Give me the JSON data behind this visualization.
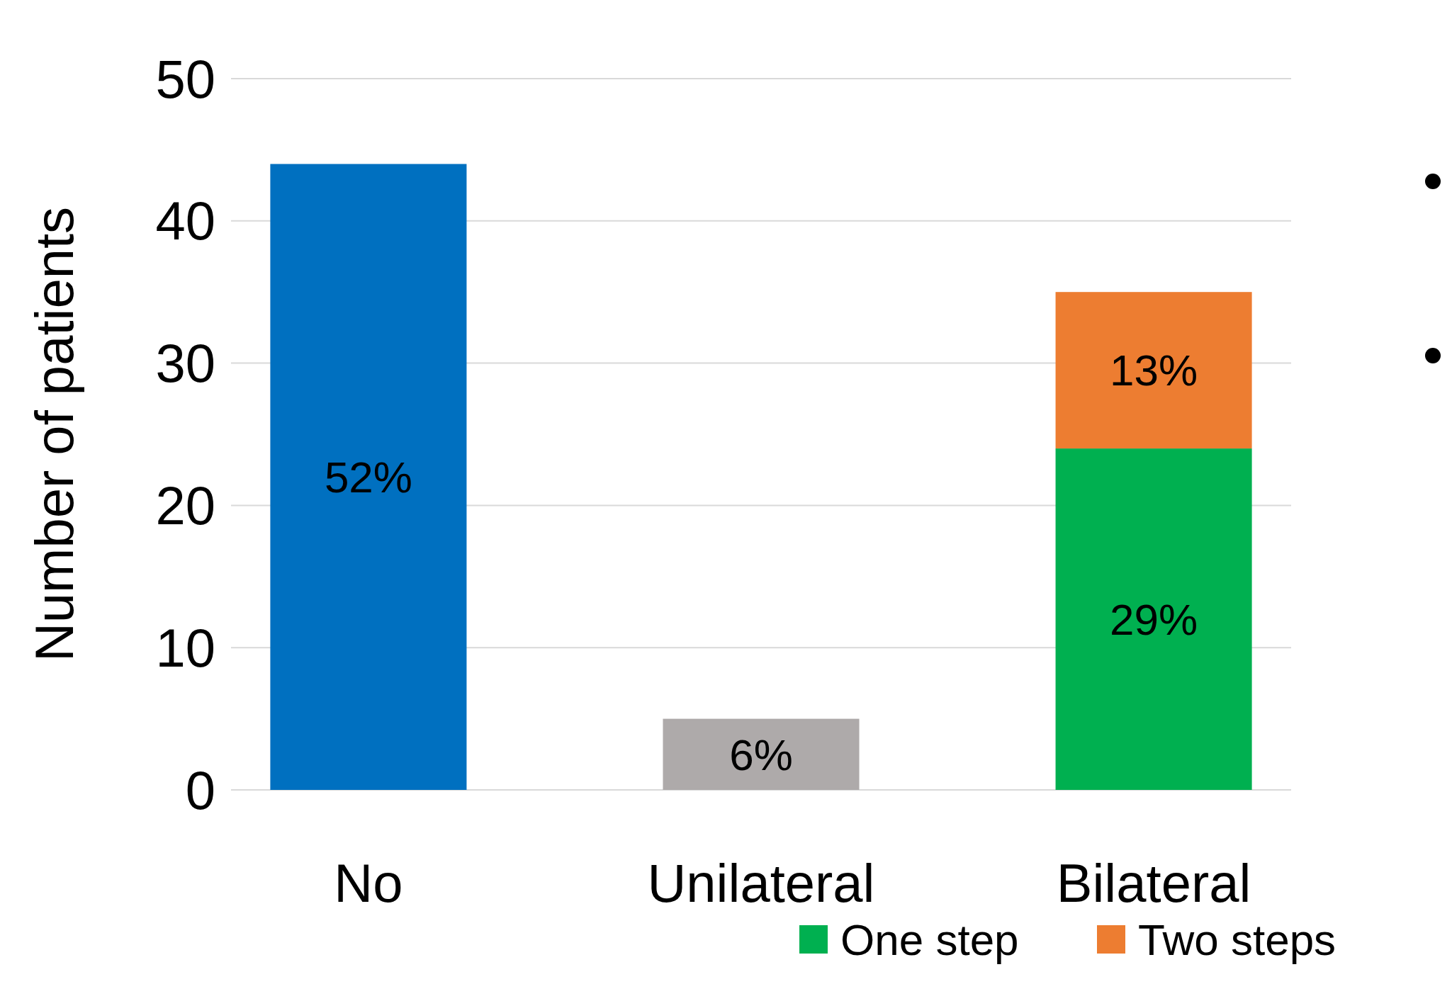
{
  "chart_data": {
    "type": "bar",
    "ylabel": "Number of patients",
    "categories": [
      "No",
      "Unilateral",
      "Bilateral"
    ],
    "series": [
      {
        "colors": [
          "#0070c0",
          "#aeaaaa",
          null
        ],
        "values": [
          44,
          5,
          null
        ]
      },
      {
        "name": "One step",
        "color": "#00b050",
        "values": [
          null,
          null,
          24
        ]
      },
      {
        "name": "Two steps",
        "color": "#ed7d31",
        "values": [
          null,
          null,
          11
        ]
      }
    ],
    "annotations": [
      "52%",
      "6%",
      "29%",
      "13%"
    ],
    "stacked": true,
    "ylim": [
      0,
      50
    ],
    "yticks": [
      0,
      10,
      20,
      30,
      40,
      50
    ],
    "grid": "y",
    "legend": "bottom"
  }
}
